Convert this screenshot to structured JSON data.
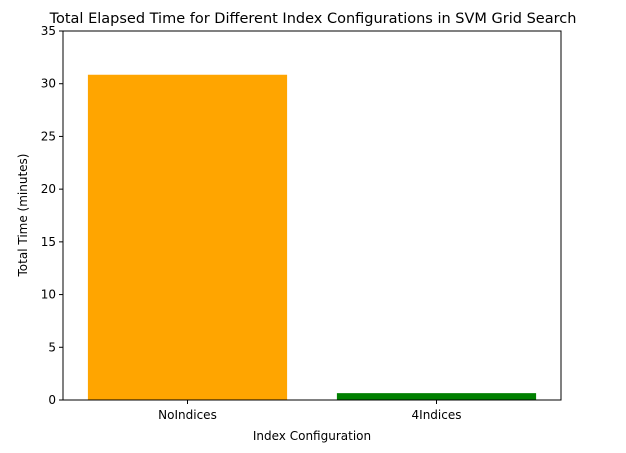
{
  "chart_data": {
    "type": "bar",
    "title": "Total Elapsed Time for Different Index Configurations in SVM Grid Search",
    "xlabel": "Index Configuration",
    "ylabel": "Total Time (minutes)",
    "categories": [
      "NoIndices",
      "4Indices"
    ],
    "values": [
      30.85,
      0.65
    ],
    "colors": [
      "#FFA500",
      "#008000"
    ],
    "ylim": [
      0,
      35
    ],
    "yticks": [
      0,
      5,
      10,
      15,
      20,
      25,
      30,
      35
    ],
    "grid": false,
    "legend": "none"
  }
}
